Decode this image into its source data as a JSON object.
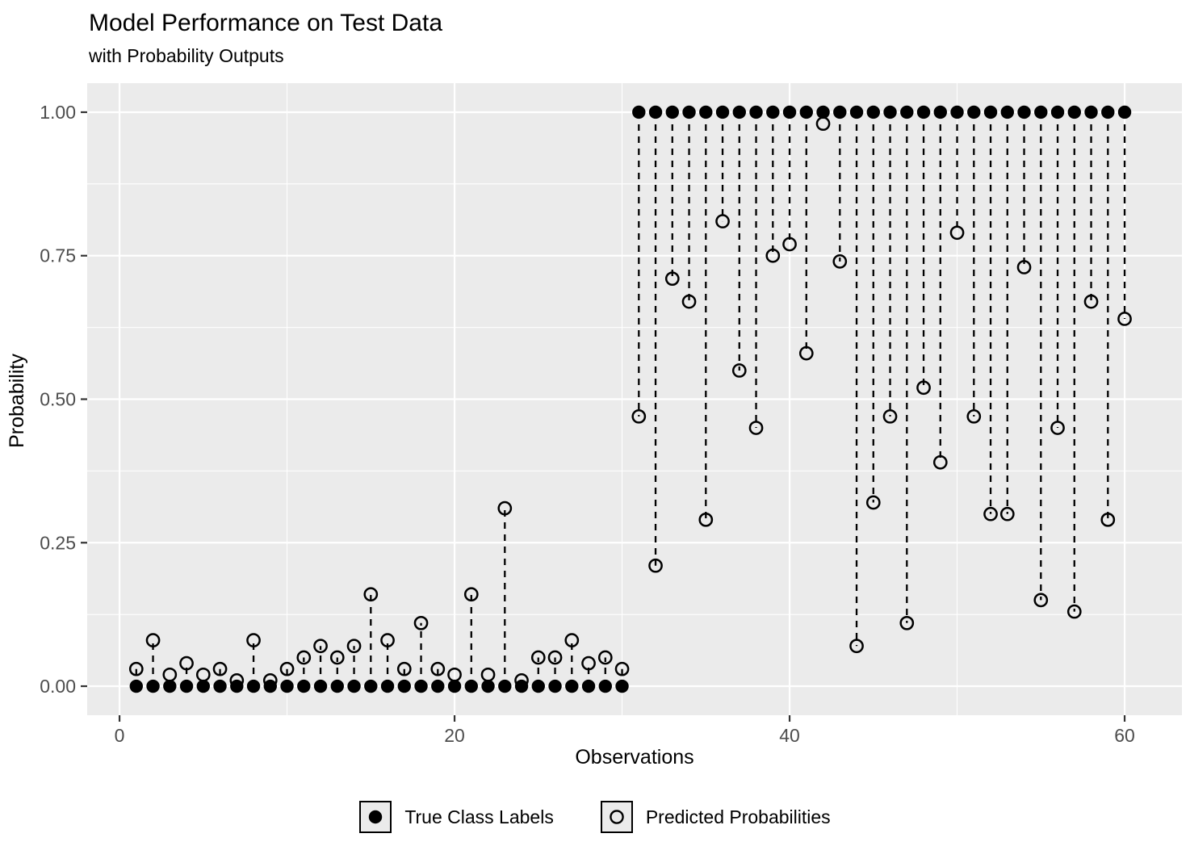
{
  "chart": {
    "title": "Model Performance on Test Data",
    "subtitle": "with Probability Outputs",
    "x_axis_title": "Observations",
    "y_axis_title": "Probability",
    "panel_bg": "#EBEBEB",
    "grid_color": "#FFFFFF",
    "tick_label_color": "#4D4D4D",
    "tick_mark_color": "#333333",
    "point_color": "#000000"
  },
  "legend": {
    "items": [
      {
        "label": "True Class Labels",
        "marker": "filled-circle"
      },
      {
        "label": "Predicted Probabilities",
        "marker": "open-circle"
      }
    ]
  },
  "chart_data": {
    "type": "scatter",
    "title": "Model Performance on Test Data",
    "subtitle": "with Probability Outputs",
    "xlabel": "Observations",
    "ylabel": "Probability",
    "x": [
      1,
      2,
      3,
      4,
      5,
      6,
      7,
      8,
      9,
      10,
      11,
      12,
      13,
      14,
      15,
      16,
      17,
      18,
      19,
      20,
      21,
      22,
      23,
      24,
      25,
      26,
      27,
      28,
      29,
      30,
      31,
      32,
      33,
      34,
      35,
      36,
      37,
      38,
      39,
      40,
      41,
      42,
      43,
      44,
      45,
      46,
      47,
      48,
      49,
      50,
      51,
      52,
      53,
      54,
      55,
      56,
      57,
      58,
      59,
      60
    ],
    "series": [
      {
        "name": "True Class Labels",
        "marker": "filled-circle",
        "values": [
          0,
          0,
          0,
          0,
          0,
          0,
          0,
          0,
          0,
          0,
          0,
          0,
          0,
          0,
          0,
          0,
          0,
          0,
          0,
          0,
          0,
          0,
          0,
          0,
          0,
          0,
          0,
          0,
          0,
          0,
          1,
          1,
          1,
          1,
          1,
          1,
          1,
          1,
          1,
          1,
          1,
          1,
          1,
          1,
          1,
          1,
          1,
          1,
          1,
          1,
          1,
          1,
          1,
          1,
          1,
          1,
          1,
          1,
          1,
          1
        ]
      },
      {
        "name": "Predicted Probabilities",
        "marker": "open-circle",
        "values": [
          0.03,
          0.08,
          0.02,
          0.04,
          0.02,
          0.03,
          0.01,
          0.08,
          0.01,
          0.03,
          0.05,
          0.07,
          0.05,
          0.07,
          0.16,
          0.08,
          0.03,
          0.11,
          0.03,
          0.02,
          0.16,
          0.02,
          0.31,
          0.01,
          0.05,
          0.05,
          0.08,
          0.04,
          0.05,
          0.03,
          0.47,
          0.21,
          0.71,
          0.67,
          0.29,
          0.81,
          0.55,
          0.45,
          0.75,
          0.77,
          0.58,
          0.98,
          0.74,
          0.07,
          0.32,
          0.47,
          0.11,
          0.52,
          0.39,
          0.79,
          0.47,
          0.3,
          0.3,
          0.73,
          0.15,
          0.45,
          0.13,
          0.67,
          0.29,
          0.64
        ]
      }
    ],
    "segments": "dashed vertical line from true label to predicted probability per observation",
    "x_ticks": {
      "values": [
        0,
        20,
        40,
        60
      ],
      "labels": [
        "0",
        "20",
        "40",
        "60"
      ],
      "minor": [
        10,
        30,
        50
      ]
    },
    "y_ticks": {
      "values": [
        0,
        0.25,
        0.5,
        0.75,
        1
      ],
      "labels": [
        "0.00",
        "0.25",
        "0.50",
        "0.75",
        "1.00"
      ],
      "minor": [
        0.125,
        0.375,
        0.625,
        0.875
      ]
    },
    "xlim": [
      -1.93,
      63.42
    ],
    "ylim": [
      -0.0506,
      1.0506
    ],
    "grid": true,
    "legend_position": "bottom"
  }
}
